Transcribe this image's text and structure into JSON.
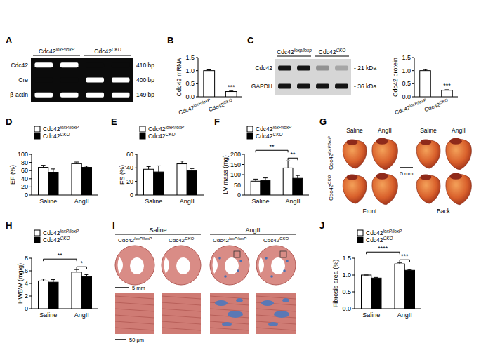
{
  "chart_data": [
    {
      "type": "bar",
      "panel": "B",
      "y_label": "Cdc42 mRNA",
      "categories": [
        "Cdc42loxP/loxP",
        "Cdc42CKO"
      ],
      "values": [
        1.0,
        0.2
      ],
      "errors": [
        0.03,
        0.02
      ],
      "colors": [
        "#ffffff",
        "#ffffff"
      ],
      "ylim": [
        0,
        1.5
      ],
      "yticks": [
        {
          "value": 0,
          "label": "0.0"
        },
        {
          "value": 0.5,
          "label": "0.5"
        },
        {
          "value": 1,
          "label": "1.0"
        },
        {
          "value": 1.5,
          "label": "1.5"
        }
      ],
      "significance": [
        {
          "label": "***",
          "groups": [
            [
              1,
              0
            ]
          ]
        }
      ]
    },
    {
      "type": "bar",
      "y_label": "Cdc42 protein",
      "categories": [
        "Cdc42loxP/loxP",
        "Cdc42CKO"
      ],
      "values": [
        1.0,
        0.25
      ],
      "errors": [
        0.04,
        0.02
      ],
      "colors": [
        "#ffffff",
        "#ffffff"
      ],
      "ylim": [
        0,
        1.5
      ],
      "yticks": [
        {
          "value": 0,
          "label": "0.0"
        },
        {
          "value": 0.5,
          "label": "0.5"
        },
        {
          "value": 1,
          "label": "1.0"
        },
        {
          "value": 1.5,
          "label": "1.5"
        }
      ],
      "significance": [
        {
          "label": "***",
          "groups": [
            [
              1,
              0
            ]
          ]
        }
      ]
    },
    {
      "type": "bar",
      "panel": "D",
      "y_label": "EF (%)",
      "categories": [
        "Saline",
        "AngII"
      ],
      "series": [
        {
          "name": "Cdc42loxP/loxP",
          "color": "#ffffff",
          "values": [
            68,
            77
          ],
          "errors": [
            5,
            4
          ]
        },
        {
          "name": "Cdc42CKO",
          "color": "#000000",
          "values": [
            56,
            68
          ],
          "errors": [
            8,
            3
          ]
        }
      ],
      "ylim": [
        0,
        100
      ],
      "yticks": [
        0,
        20,
        40,
        60,
        80,
        100
      ],
      "legend": "top"
    },
    {
      "type": "bar",
      "panel": "E",
      "y_label": "FS (%)",
      "categories": [
        "Saline",
        "AngII"
      ],
      "series": [
        {
          "name": "Cdc42loxP/loxP",
          "color": "#ffffff",
          "values": [
            38,
            46
          ],
          "errors": [
            4,
            4
          ]
        },
        {
          "name": "Cdc42CKO",
          "color": "#000000",
          "values": [
            34,
            36
          ],
          "errors": [
            9,
            3
          ]
        }
      ],
      "ylim": [
        0,
        60
      ],
      "yticks": [
        0,
        20,
        40,
        60
      ],
      "legend": "top"
    },
    {
      "type": "bar",
      "panel": "F",
      "y_label": "LV mass (mg)",
      "categories": [
        "Saline",
        "AngII"
      ],
      "series": [
        {
          "name": "Cdc42loxP/loxP",
          "color": "#ffffff",
          "values": [
            68,
            133
          ],
          "errors": [
            10,
            35
          ]
        },
        {
          "name": "Cdc42CKO",
          "color": "#000000",
          "values": [
            72,
            82
          ],
          "errors": [
            12,
            14
          ]
        }
      ],
      "ylim": [
        0,
        200
      ],
      "yticks": [
        0,
        50,
        100,
        150,
        200
      ],
      "legend": "top",
      "significance": [
        {
          "label": "**",
          "groups": [
            [
              0,
              0
            ],
            [
              1,
              0
            ]
          ]
        },
        {
          "label": "**",
          "groups": [
            [
              1,
              0
            ],
            [
              1,
              1
            ]
          ]
        }
      ]
    },
    {
      "type": "bar",
      "panel": "H",
      "y_label": "HWBW (mg/g)",
      "categories": [
        "Saline",
        "AngII"
      ],
      "series": [
        {
          "name": "Cdc42loxP/loxP",
          "color": "#ffffff",
          "values": [
            4.4,
            5.8
          ],
          "errors": [
            0.3,
            0.4
          ]
        },
        {
          "name": "Cdc42CKO",
          "color": "#000000",
          "values": [
            4.2,
            5.1
          ],
          "errors": [
            0.4,
            0.3
          ]
        }
      ],
      "ylim": [
        0,
        8
      ],
      "yticks": [
        0,
        2,
        4,
        6,
        8
      ],
      "legend": "top",
      "significance": [
        {
          "label": "**",
          "groups": [
            [
              0,
              0
            ],
            [
              1,
              0
            ]
          ]
        },
        {
          "label": "*",
          "groups": [
            [
              1,
              0
            ],
            [
              1,
              1
            ]
          ]
        }
      ]
    },
    {
      "type": "bar",
      "panel": "J",
      "y_label": "Fibrosis area (%)",
      "categories": [
        "Saline",
        "AngII"
      ],
      "series": [
        {
          "name": "Cdc42loxP/loxP",
          "color": "#ffffff",
          "values": [
            1.0,
            1.33
          ],
          "errors": [
            0.0,
            0.04
          ]
        },
        {
          "name": "Cdc42CKO",
          "color": "#000000",
          "values": [
            0.91,
            1.14
          ],
          "errors": [
            0.02,
            0.02
          ]
        }
      ],
      "ylim": [
        0,
        1.5
      ],
      "yticks": [
        {
          "value": 0,
          "label": "0.0"
        },
        {
          "value": 0.5,
          "label": "0.5"
        },
        {
          "value": 1,
          "label": "1.0"
        },
        {
          "value": 1.5,
          "label": "1.5"
        }
      ],
      "legend": "top",
      "significance": [
        {
          "label": "****",
          "groups": [
            [
              0,
              0
            ],
            [
              1,
              0
            ]
          ]
        },
        {
          "label": "***",
          "groups": [
            [
              1,
              0
            ],
            [
              1,
              1
            ]
          ]
        }
      ]
    }
  ],
  "gel": {
    "panel": "A",
    "header": [
      {
        "text": "Cdc42loxP/loxP",
        "lanes": 2
      },
      {
        "text": "Cdc42CKO",
        "lanes": 2
      }
    ],
    "rows": [
      {
        "label": "Cdc42",
        "size": "410 bp",
        "bands": [
          1,
          1,
          0,
          0
        ]
      },
      {
        "label": "Cre",
        "size": "400 bp",
        "bands": [
          0,
          0,
          1,
          1
        ]
      },
      {
        "label": "β-actin",
        "size": "149 bp",
        "bands": [
          1,
          1,
          1,
          1
        ]
      }
    ]
  },
  "blot": {
    "panel": "C",
    "header": [
      {
        "text": "Cdc42loxp/loxp",
        "lanes": 2
      },
      {
        "text": "Cdc42CKO",
        "lanes": 2
      }
    ],
    "rows": [
      {
        "label": "Cdc42",
        "size": "- 21 kDa",
        "bands": [
          1,
          1,
          0.35,
          0.25
        ]
      },
      {
        "label": "GAPDH",
        "size": "- 36 kDa",
        "bands": [
          1,
          1,
          1,
          1
        ]
      }
    ]
  },
  "photo": {
    "panel": "G",
    "columns": [
      "Saline",
      "AngII",
      "Saline",
      "AngII"
    ],
    "rows": [
      "Cdc42loxP/loxP",
      "Cdc42CKO"
    ],
    "views": [
      "Front",
      "Back"
    ],
    "scale_bar": "5 mm"
  },
  "histology": {
    "panel": "I",
    "groups": [
      {
        "label": "Saline",
        "columns": [
          "Cdc42loxP/loxP",
          "Cdc42CKO"
        ]
      },
      {
        "label": "AngII",
        "columns": [
          "Cdc42loxP/loxP",
          "Cdc42CKO"
        ]
      }
    ],
    "scale_bars": [
      "5 mm",
      "50 μm"
    ]
  }
}
